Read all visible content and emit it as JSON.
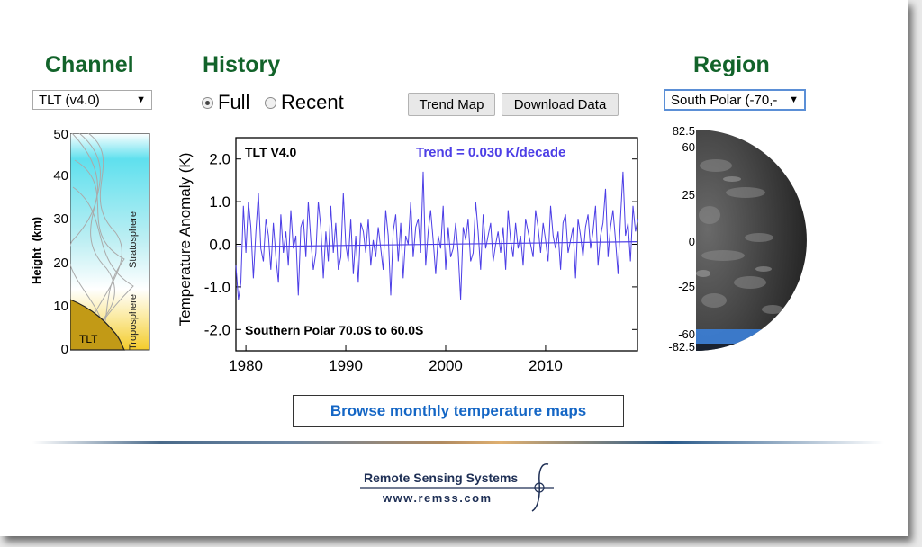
{
  "channel": {
    "heading": "Channel",
    "selected": "TLT (v4.0)"
  },
  "history": {
    "heading": "History",
    "options": [
      "Full",
      "Recent"
    ],
    "selected": "Full"
  },
  "buttons": {
    "trend_map": "Trend Map",
    "download_data": "Download Data"
  },
  "region": {
    "heading": "Region",
    "selected": "South Polar (-70,-"
  },
  "weighting": {
    "ticks": [
      "50",
      "40",
      "30",
      "20",
      "10",
      "0"
    ],
    "ylabel": "Height  (km)",
    "layers": {
      "stratosphere": "Stratosphere",
      "troposphere": "Troposphere"
    },
    "function_label": "TLT"
  },
  "globe": {
    "lat_labels": [
      "82.5",
      "60",
      "25",
      "0",
      "-25",
      "-60",
      "-82.5"
    ],
    "lat_values": [
      82.5,
      60,
      25,
      0,
      -25,
      -60,
      -82.5
    ]
  },
  "chart_data": {
    "type": "line",
    "title": "TLT V4.0",
    "trend_text": "Trend =  0.030 K/decade",
    "region_text": "Southern Polar  70.0S to  60.0S",
    "xlabel": "",
    "ylabel": "Temperature Anomaly (K)",
    "xlim": [
      1979,
      2019.2
    ],
    "ylim": [
      -2.5,
      2.5
    ],
    "x_ticks": [
      1980,
      1990,
      2000,
      2010
    ],
    "y_ticks": [
      2.0,
      1.0,
      0.0,
      -1.0,
      -2.0
    ],
    "y_tick_labels": [
      "2.0",
      "1.0",
      "0.0",
      "-1.0",
      "-2.0"
    ],
    "series_color": "#4c3ee6",
    "trend_line": {
      "slope_per_decade": 0.03,
      "intercept_at_1979": -0.06
    },
    "series": [
      {
        "x_start": 1979.0,
        "x_step": 0.25,
        "values": [
          -0.5,
          -1.3,
          -0.9,
          0.9,
          -0.2,
          1.0,
          0.4,
          -0.8,
          0.3,
          1.2,
          -0.1,
          -0.4,
          0.6,
          0.2,
          -0.6,
          0.5,
          -0.3,
          -0.9,
          0.7,
          -0.2,
          0.3,
          -0.5,
          0.8,
          -0.1,
          0.2,
          -1.2,
          0.4,
          0.6,
          -0.3,
          1.0,
          0.1,
          -0.6,
          -0.2,
          1.0,
          0.4,
          -0.8,
          0.3,
          -0.4,
          0.9,
          -0.2,
          0.5,
          -0.6,
          -0.3,
          1.2,
          0.0,
          -0.4,
          0.6,
          -0.7,
          0.2,
          -0.9,
          0.5,
          0.3,
          -0.2,
          0.6,
          -0.5,
          0.1,
          -0.3,
          0.4,
          -0.1,
          -0.6,
          0.8,
          0.2,
          -1.2,
          0.3,
          0.7,
          -0.4,
          0.5,
          -0.8,
          0.2,
          0.0,
          1.0,
          -0.3,
          0.4,
          0.6,
          -0.2,
          1.7,
          -0.5,
          0.3,
          0.8,
          0.1,
          -0.7,
          0.2,
          -0.1,
          0.9,
          -0.6,
          0.4,
          -0.3,
          -0.1,
          0.5,
          -0.2,
          -1.3,
          0.4,
          0.1,
          0.6,
          -0.4,
          -0.2,
          1.0,
          0.3,
          -0.6,
          0.7,
          -0.1,
          0.2,
          0.5,
          -0.4,
          0.0,
          0.3,
          -0.2,
          0.4,
          -0.6,
          0.8,
          0.1,
          -0.3,
          0.5,
          -0.1,
          0.2,
          -0.5,
          0.6,
          0.3,
          0.0,
          -0.3,
          0.8,
          0.4,
          -0.2,
          0.5,
          0.1,
          -0.4,
          0.9,
          0.2,
          -0.1,
          0.3,
          -0.6,
          0.5,
          0.7,
          -0.2,
          0.1,
          0.4,
          -0.8,
          0.6,
          0.2,
          -0.3,
          0.4,
          0.7,
          -0.1,
          0.3,
          0.9,
          -0.5,
          0.2,
          0.5,
          1.3,
          -0.3,
          0.4,
          0.8,
          0.1,
          -0.7,
          0.6,
          1.7,
          0.2,
          0.5,
          -0.4,
          0.9,
          0.3,
          0.6
        ]
      }
    ]
  }
}
